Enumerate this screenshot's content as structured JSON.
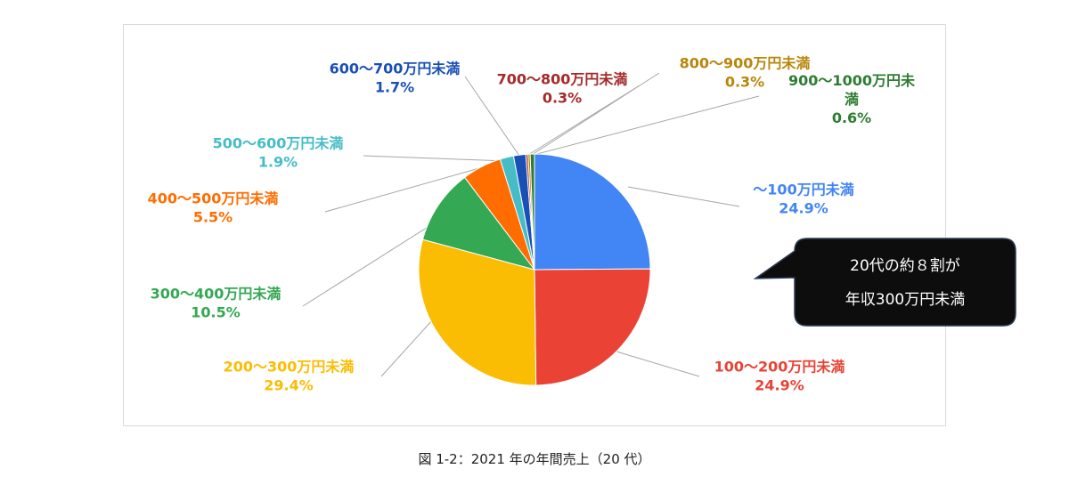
{
  "chart_data": {
    "type": "pie",
    "categories": [
      "～100万円未満",
      "100～200万円未満",
      "200～300万円未満",
      "300～400万円未満",
      "400～500万円未満",
      "500～600万円未満",
      "600～700万円未満",
      "700～800万円未満",
      "800～900万円未満",
      "900～1000万円未満"
    ],
    "values": [
      24.9,
      24.9,
      29.4,
      10.5,
      5.5,
      1.9,
      1.7,
      0.3,
      0.3,
      0.6
    ],
    "value_labels": [
      "24.9%",
      "24.9%",
      "29.4%",
      "10.5%",
      "5.5%",
      "1.9%",
      "1.7%",
      "0.3%",
      "0.3%",
      "0.6%"
    ],
    "label_lines": [
      [
        "～100万円未満",
        "24.9%"
      ],
      [
        "100～200万円未満",
        "24.9%"
      ],
      [
        "200～300万円未満",
        "29.4%"
      ],
      [
        "300～400万円未満",
        "10.5%"
      ],
      [
        "400～500万円未満",
        "5.5%"
      ],
      [
        "500～600万円未満",
        "1.9%"
      ],
      [
        "600～700万円未満",
        "1.7%"
      ],
      [
        "700～800万円未満",
        "0.3%"
      ],
      [
        "800～900万円未満",
        "0.3%"
      ],
      [
        "900～1000万円未",
        "満",
        "0.6%"
      ]
    ],
    "colors": [
      "#4285f4",
      "#ea4335",
      "#fbbc04",
      "#34a853",
      "#ff6d01",
      "#46bdc6",
      "#1a4fb5",
      "#a52a2a",
      "#b8860b",
      "#2e7d32"
    ],
    "start_angle": 0,
    "direction": "clockwise"
  },
  "callout": {
    "lines": [
      "20代の約８割が",
      "年収300万円未満"
    ]
  },
  "caption": "図 1-2：2021 年の年間売上（20 代）"
}
